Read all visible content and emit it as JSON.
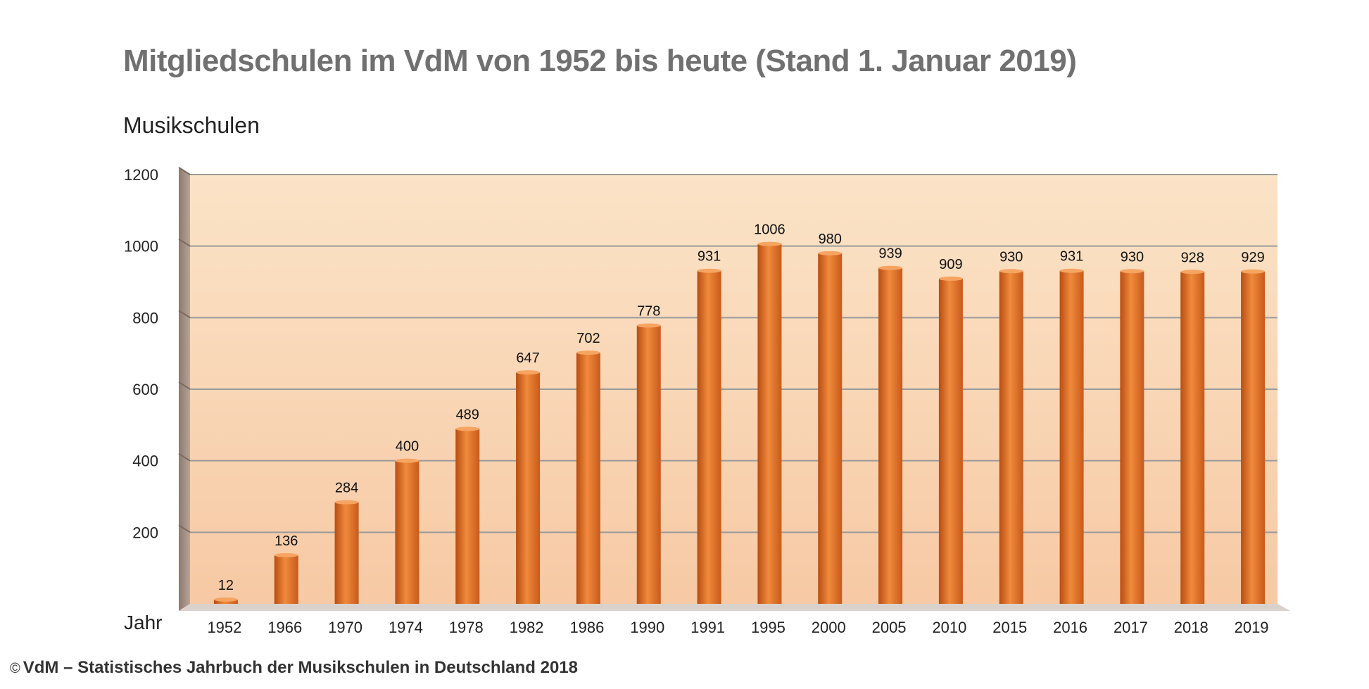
{
  "title": "Mitgliedschulen im VdM von 1952 bis heute (Stand 1. Januar 2019)",
  "source": "VdM – Statistisches Jahrbuch der Musikschulen in Deutschland 2018",
  "copyright_symbol": "©",
  "colors": {
    "bar": "#e8752a",
    "plot_bg": "#f9d4b4",
    "wall": "#a08a7a",
    "grid": "#9a9a9a",
    "title": "#707070"
  },
  "chart_data": {
    "type": "bar",
    "title": "Mitgliedschulen im VdM von 1952 bis heute (Stand 1. Januar 2019)",
    "ylabel": "Musikschulen",
    "xlabel": "Jahr",
    "categories": [
      "1952",
      "1966",
      "1970",
      "1974",
      "1978",
      "1982",
      "1986",
      "1990",
      "1991",
      "1995",
      "2000",
      "2005",
      "2010",
      "2015",
      "2016",
      "2017",
      "2018",
      "2019"
    ],
    "values": [
      12,
      136,
      284,
      400,
      489,
      647,
      702,
      778,
      931,
      1006,
      980,
      939,
      909,
      930,
      931,
      930,
      928,
      929
    ],
    "ylim": [
      0,
      1200
    ],
    "yticks": [
      200,
      400,
      600,
      800,
      1000,
      1200
    ],
    "grid": true,
    "legend": "none",
    "data_labels": true
  }
}
